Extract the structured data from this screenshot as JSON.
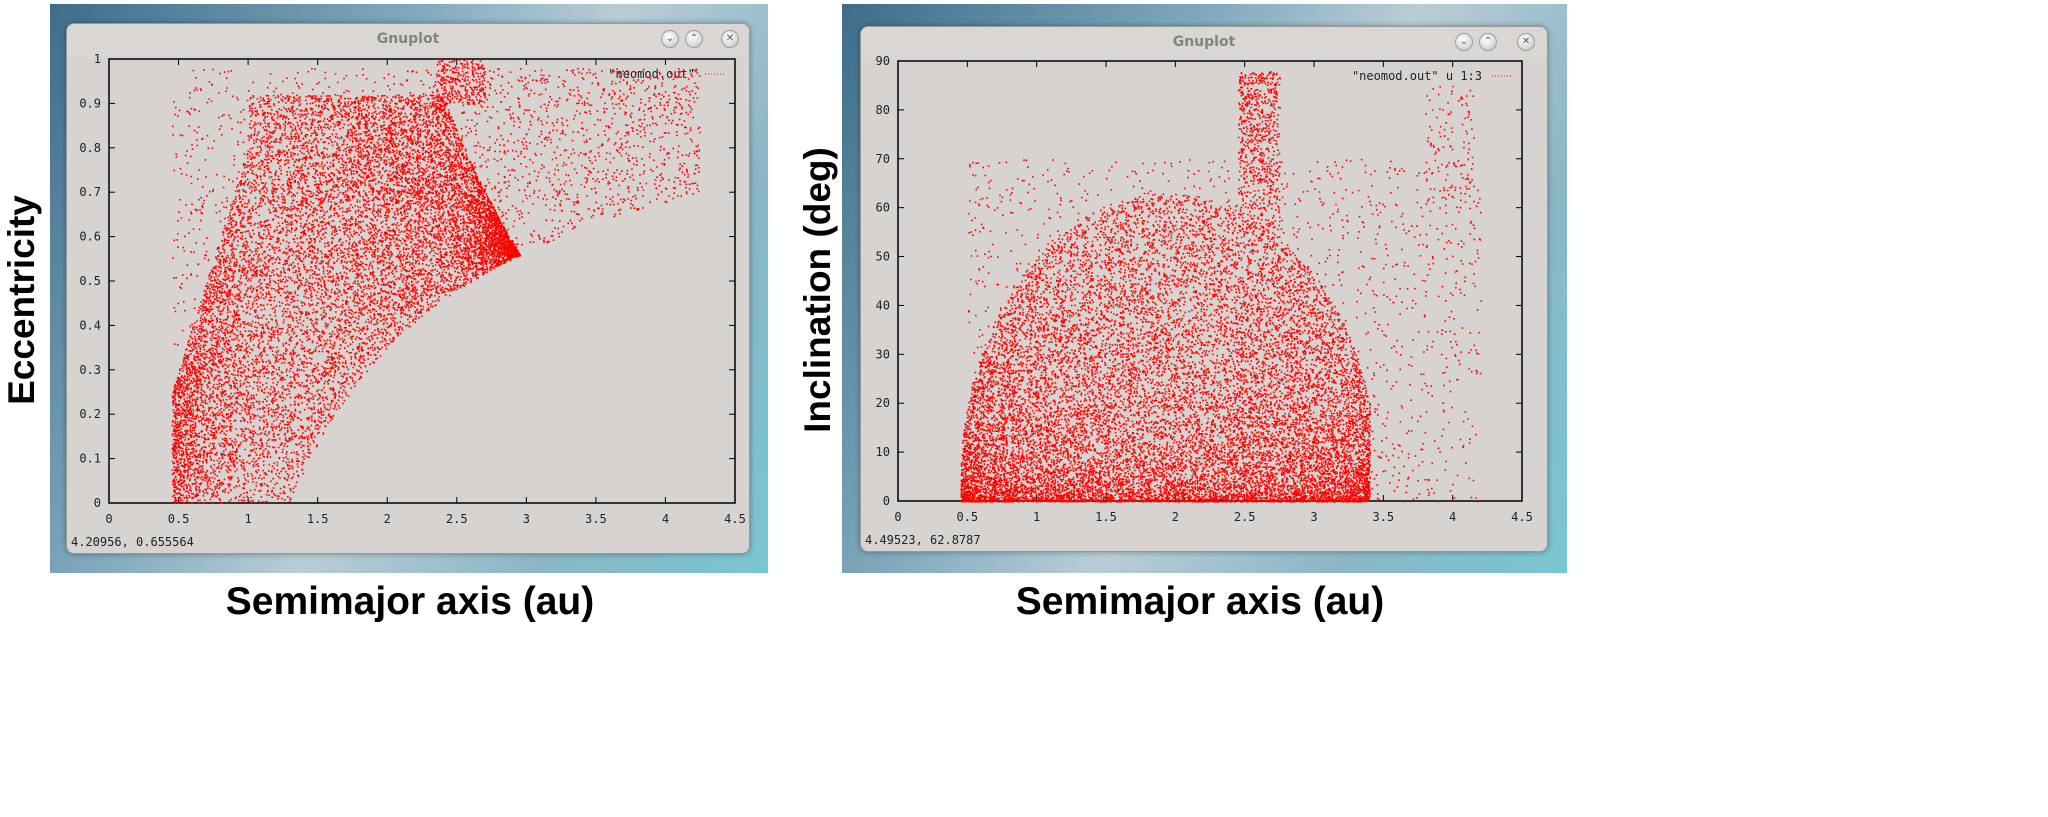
{
  "figure": {
    "left_panel_ylabel": "Eccentricity",
    "right_panel_ylabel": "Inclination (deg)",
    "left_panel_xlabel": "Semimajor axis (au)",
    "right_panel_xlabel": "Semimajor axis (au)"
  },
  "windows": [
    {
      "title": "Gnuplot",
      "status_readout": "4.20956,  0.655564",
      "buttons": [
        "chevron-down-icon",
        "chevron-up-icon",
        "close-icon"
      ]
    },
    {
      "title": "Gnuplot",
      "status_readout": "4.49523,  62.8787",
      "buttons": [
        "chevron-down-icon",
        "chevron-up-icon",
        "close-icon"
      ]
    }
  ],
  "chart_data": [
    {
      "type": "scatter",
      "legend": "\"neomod.out\"",
      "legend_position": "top-right",
      "xlim": [
        0,
        4.5
      ],
      "ylim": [
        0,
        1
      ],
      "x_ticks": [
        "0",
        "0.5",
        "1",
        "1.5",
        "2",
        "2.5",
        "3",
        "3.5",
        "4",
        "4.5"
      ],
      "y_ticks": [
        "0",
        "0.1",
        "0.2",
        "0.3",
        "0.4",
        "0.5",
        "0.6",
        "0.7",
        "0.8",
        "0.9",
        "1"
      ],
      "series_color": "#ff0000",
      "description_points": {
        "dense_core": {
          "x_range": [
            0.5,
            3.4
          ],
          "y_range": [
            0.0,
            0.9
          ]
        },
        "lower_boundary_q_equals_1_3au": [
          [
            1.3,
            0.0
          ],
          [
            1.5,
            0.133
          ],
          [
            2.0,
            0.35
          ],
          [
            2.5,
            0.48
          ],
          [
            3.0,
            0.567
          ],
          [
            3.5,
            0.629
          ],
          [
            4.2,
            0.69
          ]
        ],
        "sparse_tail": {
          "x_range": [
            3.4,
            4.2
          ],
          "y_range": [
            0.62,
            0.92
          ]
        }
      }
    },
    {
      "type": "scatter",
      "legend": "\"neomod.out\" u 1:3",
      "legend_position": "top-right",
      "xlim": [
        0,
        4.5
      ],
      "ylim": [
        0,
        90
      ],
      "x_ticks": [
        "0",
        "0.5",
        "1",
        "1.5",
        "2",
        "2.5",
        "3",
        "3.5",
        "4",
        "4.5"
      ],
      "y_ticks": [
        "0",
        "10",
        "20",
        "30",
        "40",
        "50",
        "60",
        "70",
        "80",
        "90"
      ],
      "series_color": "#ff0000",
      "description_points": {
        "dense_dome": {
          "x_range": [
            0.45,
            3.4
          ],
          "y_peak": 55
        },
        "high_inclination_column": {
          "x_range": [
            2.45,
            2.75
          ],
          "y_range": [
            55,
            88
          ]
        },
        "sparse_outer": {
          "x_range": [
            3.4,
            4.2
          ],
          "y_range": [
            0,
            85
          ]
        }
      }
    }
  ]
}
